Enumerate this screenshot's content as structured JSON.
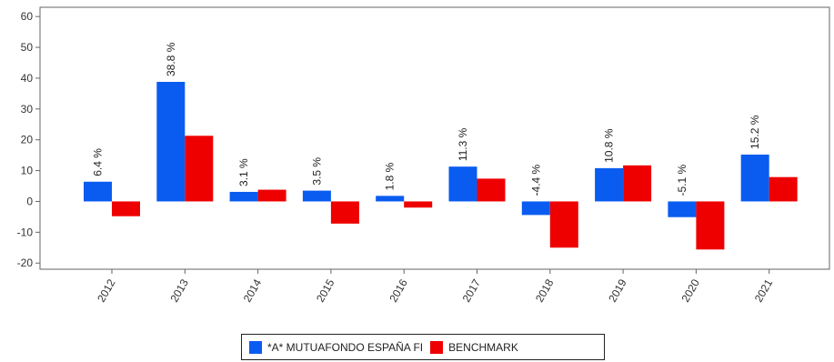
{
  "chart_data": {
    "type": "bar",
    "categories": [
      "2012",
      "2013",
      "2014",
      "2015",
      "2016",
      "2017",
      "2018",
      "2019",
      "2020",
      "2021"
    ],
    "series": [
      {
        "name": "*A* MUTUAFONDO ESPAÑA FI",
        "color": "#0a5cf0",
        "values": [
          6.4,
          38.8,
          3.1,
          3.5,
          1.8,
          11.3,
          -4.4,
          10.8,
          -5.1,
          15.2
        ],
        "labels": [
          "6.4 %",
          "38.8 %",
          "3.1 %",
          "3.5 %",
          "1.8 %",
          "11.3 %",
          "-4.4 %",
          "10.8 %",
          "-5.1 %",
          "15.2 %"
        ]
      },
      {
        "name": "BENCHMARK",
        "color": "#ee0000",
        "values": [
          -4.8,
          21.3,
          3.8,
          -7.2,
          -2.0,
          7.4,
          -15.0,
          11.7,
          -15.6,
          7.9
        ]
      }
    ],
    "yticks": [
      60,
      50,
      40,
      30,
      20,
      10,
      0,
      -10,
      -20
    ],
    "ylim": [
      -22,
      63
    ],
    "title": "",
    "xlabel": "",
    "ylabel": "",
    "grid": false,
    "legend_position": "bottom"
  }
}
